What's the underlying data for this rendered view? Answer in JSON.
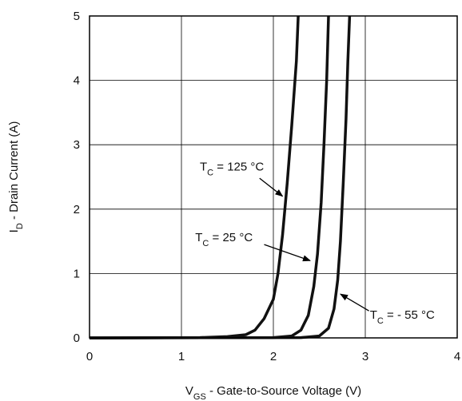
{
  "chart_data": {
    "type": "line",
    "xlabel": {
      "main": "V",
      "sub": "GS",
      "rest": " - Gate-to-Source Voltage (V)"
    },
    "ylabel": {
      "main": "I",
      "sub": "D",
      "rest": " - Drain Current (A)"
    },
    "xlim": [
      0,
      4
    ],
    "ylim": [
      0,
      5
    ],
    "x_ticks": [
      "0",
      "1",
      "2",
      "3",
      "4"
    ],
    "y_ticks": [
      "0",
      "1",
      "2",
      "3",
      "4",
      "5"
    ],
    "grid": true,
    "series": [
      {
        "name": {
          "main": "T",
          "sub": "C",
          "rest": " = 125 °C"
        },
        "points": [
          [
            0,
            0
          ],
          [
            1.2,
            0.005
          ],
          [
            1.5,
            0.02
          ],
          [
            1.7,
            0.05
          ],
          [
            1.8,
            0.12
          ],
          [
            1.9,
            0.3
          ],
          [
            2.0,
            0.6
          ],
          [
            2.05,
            1.0
          ],
          [
            2.1,
            1.6
          ],
          [
            2.15,
            2.4
          ],
          [
            2.2,
            3.3
          ],
          [
            2.25,
            4.3
          ],
          [
            2.27,
            5.0
          ]
        ]
      },
      {
        "name": {
          "main": "T",
          "sub": "C",
          "rest": " = 25 °C"
        },
        "points": [
          [
            0,
            0
          ],
          [
            2.0,
            0.005
          ],
          [
            2.2,
            0.03
          ],
          [
            2.3,
            0.12
          ],
          [
            2.38,
            0.35
          ],
          [
            2.44,
            0.8
          ],
          [
            2.48,
            1.3
          ],
          [
            2.52,
            2.1
          ],
          [
            2.55,
            3.0
          ],
          [
            2.58,
            4.0
          ],
          [
            2.6,
            5.0
          ]
        ]
      },
      {
        "name": {
          "main": "T",
          "sub": "C",
          "rest": " = - 55 °C"
        },
        "points": [
          [
            0,
            0
          ],
          [
            2.3,
            0.005
          ],
          [
            2.5,
            0.03
          ],
          [
            2.6,
            0.15
          ],
          [
            2.66,
            0.45
          ],
          [
            2.7,
            0.9
          ],
          [
            2.73,
            1.5
          ],
          [
            2.76,
            2.4
          ],
          [
            2.79,
            3.4
          ],
          [
            2.81,
            4.3
          ],
          [
            2.83,
            5.0
          ]
        ]
      }
    ],
    "annotations": [
      {
        "series": 0,
        "text_at": [
          1.2,
          2.6
        ],
        "arrow_from": [
          1.85,
          2.48
        ],
        "arrow_to": [
          2.1,
          2.2
        ]
      },
      {
        "series": 1,
        "text_at": [
          1.15,
          1.5
        ],
        "arrow_from": [
          1.9,
          1.45
        ],
        "arrow_to": [
          2.4,
          1.2
        ]
      },
      {
        "series": 2,
        "text_at": [
          3.05,
          0.3
        ],
        "arrow_from": [
          3.04,
          0.42
        ],
        "arrow_to": [
          2.73,
          0.68
        ]
      }
    ]
  }
}
